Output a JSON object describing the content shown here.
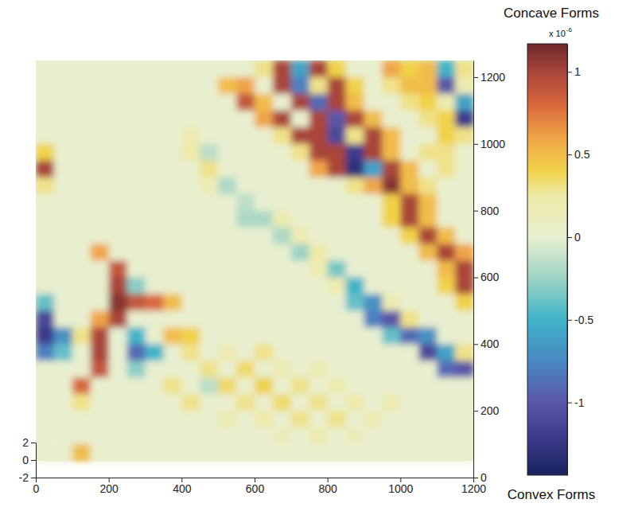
{
  "chart_data": {
    "type": "heatmap",
    "x": [
      25,
      75,
      125,
      175,
      225,
      275,
      325,
      375,
      425,
      475,
      525,
      575,
      625,
      675,
      725,
      775,
      825,
      875,
      925,
      975,
      1025,
      1075,
      1125,
      1175
    ],
    "y": [
      1225,
      1175,
      1125,
      1075,
      1025,
      975,
      925,
      875,
      825,
      775,
      725,
      675,
      625,
      575,
      525,
      475,
      425,
      375,
      325,
      275,
      225,
      175,
      125,
      75
    ],
    "cells": [
      [
        0,
        0,
        0,
        0,
        0,
        0,
        0,
        0,
        0,
        0,
        0,
        0,
        0.3,
        1,
        -0.6,
        1,
        0.4,
        0,
        0,
        0.6,
        0.4,
        0.5,
        -0.5,
        0.3
      ],
      [
        0,
        0,
        0,
        0,
        0,
        0,
        0,
        0,
        0,
        0,
        0.5,
        0.6,
        0,
        1,
        -0.8,
        0.3,
        1,
        0.4,
        0,
        0.3,
        0.5,
        0.5,
        -1,
        0.2
      ],
      [
        0,
        0,
        0,
        0,
        0,
        0,
        0,
        0,
        0,
        0,
        0,
        0.9,
        0.5,
        0,
        1,
        -0.9,
        1,
        0.5,
        0,
        0,
        0.3,
        0.4,
        0.2,
        -0.6
      ],
      [
        0,
        0,
        0,
        0,
        0,
        0,
        0,
        0,
        0,
        0,
        0,
        0,
        0.6,
        1,
        0,
        1,
        -1,
        1,
        0.5,
        0,
        0,
        0.3,
        0.4,
        -1.2
      ],
      [
        0,
        0,
        0,
        0,
        0,
        0,
        0,
        0,
        0.2,
        0,
        0,
        0,
        0,
        0.3,
        1,
        1,
        -1.1,
        0.3,
        1,
        0.5,
        0,
        0,
        0.4,
        0.3
      ],
      [
        0.4,
        0,
        0,
        0,
        0,
        0,
        0,
        0,
        0.25,
        -0.15,
        0,
        0,
        0,
        0,
        0.3,
        1,
        1,
        -1.2,
        1,
        0.5,
        0,
        0.3,
        0.3,
        0
      ],
      [
        1,
        0,
        0,
        0,
        0,
        0,
        0,
        0,
        0,
        0.3,
        0,
        0,
        0,
        0,
        0,
        0.6,
        1,
        -1.3,
        -0.6,
        1,
        0.5,
        0,
        0.3,
        0
      ],
      [
        0.3,
        0,
        0,
        0,
        0,
        0,
        0,
        0,
        0,
        0.15,
        -0.2,
        0,
        0,
        0,
        0,
        0,
        0,
        0.3,
        0.6,
        1.1,
        0.5,
        0.3,
        0,
        0
      ],
      [
        0,
        0,
        0,
        0,
        0,
        0,
        0,
        0,
        0,
        0,
        0,
        -0.15,
        0,
        0,
        0,
        0,
        0,
        0,
        0,
        0.4,
        1,
        0.5,
        0,
        0
      ],
      [
        0,
        0,
        0,
        0,
        0,
        0,
        0,
        0,
        0,
        0,
        0,
        -0.2,
        -0.2,
        0.2,
        0,
        0,
        0,
        0,
        0,
        0.4,
        1,
        0.5,
        0,
        0
      ],
      [
        0,
        0,
        0,
        0,
        0,
        0,
        0,
        0,
        0,
        0,
        0,
        0,
        0,
        -0.2,
        0.2,
        0,
        0,
        0,
        0,
        0,
        0.4,
        1,
        0.5,
        0
      ],
      [
        0,
        0,
        0,
        0.6,
        0,
        0,
        0,
        0,
        0,
        0,
        0,
        0,
        0,
        0,
        -0.25,
        0.25,
        0,
        0,
        0,
        0,
        0,
        0.5,
        1,
        0.6
      ],
      [
        0,
        0,
        0,
        0,
        0.9,
        0,
        0,
        0,
        0,
        0,
        0,
        0,
        0,
        0,
        0,
        0.2,
        -0.35,
        0,
        0,
        0,
        0,
        0,
        0.5,
        1
      ],
      [
        0,
        0,
        0,
        0,
        1,
        -0.3,
        0,
        0,
        0,
        0,
        0,
        0,
        0,
        0,
        0,
        0,
        0.2,
        -0.5,
        0,
        0,
        0,
        0,
        0.4,
        1
      ],
      [
        -0.4,
        0,
        0,
        0,
        1.1,
        0.9,
        0.8,
        0.5,
        0,
        0,
        0,
        0,
        0,
        0,
        0,
        0,
        0,
        -0.4,
        -0.7,
        0.2,
        0,
        0,
        0,
        0.4
      ],
      [
        -1.1,
        0,
        0,
        0.6,
        1,
        0,
        0,
        0,
        0,
        0,
        0,
        0,
        0,
        0,
        0,
        0,
        0,
        0,
        -0.8,
        -1,
        0.3,
        0,
        0,
        0
      ],
      [
        -1.2,
        -0.7,
        0.3,
        1,
        0,
        -0.5,
        0,
        0.5,
        0.4,
        0,
        0,
        0,
        0,
        0,
        0,
        0,
        0,
        0,
        0,
        -0.4,
        -0.9,
        -0.7,
        0,
        0
      ],
      [
        -0.8,
        -0.4,
        0,
        1,
        0,
        -0.9,
        -0.5,
        0,
        0.3,
        0,
        0.2,
        0,
        0.3,
        0,
        0,
        0,
        0,
        0,
        0,
        0,
        0,
        -1.1,
        -0.6,
        0.3
      ],
      [
        0,
        0,
        0,
        0.9,
        0,
        -0.3,
        0,
        0,
        0,
        0.3,
        0,
        0.35,
        0,
        0.2,
        0,
        0.2,
        0,
        0,
        0,
        0,
        0,
        0,
        -0.9,
        -1
      ],
      [
        0,
        0,
        0.8,
        0,
        0,
        0,
        0,
        0.3,
        0,
        -0.15,
        0.35,
        0,
        0.4,
        0,
        0.3,
        0,
        0.2,
        0,
        0,
        0,
        0,
        0,
        0,
        0
      ],
      [
        0,
        0,
        0.3,
        0,
        0,
        0,
        0,
        0,
        0.3,
        0,
        0,
        0.3,
        0,
        0.35,
        0,
        0.3,
        0,
        0.25,
        0,
        0.2,
        0,
        0,
        0,
        0
      ],
      [
        0,
        0,
        0,
        0,
        0,
        0,
        0,
        0,
        0,
        0,
        0.2,
        0,
        0.25,
        0,
        0.3,
        0,
        0.3,
        0,
        0.2,
        0,
        0,
        0,
        0,
        0
      ],
      [
        0,
        0,
        0,
        0,
        0,
        0,
        0,
        0,
        0,
        0,
        0,
        0,
        0,
        0.15,
        0,
        0.2,
        0,
        0.15,
        0,
        0,
        0,
        0,
        0,
        0
      ],
      [
        0,
        0,
        0.5,
        0,
        0,
        0,
        0,
        0,
        0,
        0,
        0,
        0,
        0,
        0,
        0,
        0,
        0,
        0,
        0,
        0,
        0,
        0,
        0,
        0
      ]
    ],
    "xlim": [
      0,
      1200
    ],
    "xticks": [
      0,
      200,
      400,
      600,
      800,
      1000,
      1200
    ],
    "ylim": [
      0,
      1250
    ],
    "yticks": [
      0,
      200,
      400,
      600,
      800,
      1000,
      1200
    ],
    "zlim": [
      -2,
      2
    ],
    "zticks": [
      -2,
      0,
      2
    ],
    "colorbar": {
      "lim": [
        -1.44,
        1.17
      ],
      "ticks": [
        -1,
        -0.5,
        0,
        0.5,
        1
      ],
      "title": "Concave Forms",
      "bottom_title": "Convex Forms",
      "multiplier": "x 10",
      "exponent": "-6"
    }
  }
}
